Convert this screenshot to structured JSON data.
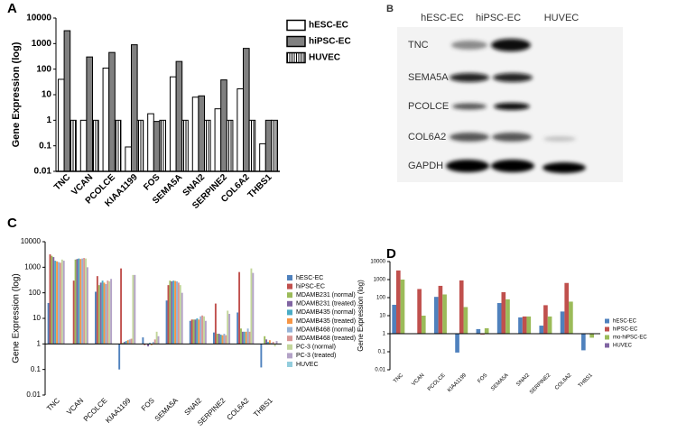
{
  "chart_data": [
    {
      "type": "bar",
      "panel_label": "A",
      "ylabel": "Gene Expression (log)",
      "log_scale": true,
      "legend": "right",
      "categories": [
        "TNC",
        "VCAN",
        "PCOLCE",
        "KIAA1199",
        "FOS",
        "SEMA5A",
        "SNAI2",
        "SERPINE2",
        "COL6A2",
        "THBS1"
      ],
      "ylim": [
        0.01,
        10000
      ],
      "yticks": [
        0.01,
        0.1,
        1,
        10,
        100,
        1000,
        10000
      ],
      "series": [
        {
          "name": "hESC-EC",
          "color": "#ffffff",
          "values": [
            40,
            1,
            110,
            0.09,
            1.8,
            50,
            8,
            2.8,
            17,
            0.12
          ]
        },
        {
          "name": "hiPSC-EC",
          "color": "#808080",
          "values": [
            3200,
            300,
            450,
            900,
            0.9,
            200,
            9,
            38,
            650,
            1
          ]
        },
        {
          "name": "HUVEC",
          "color": "#ffffff",
          "hatch": "vertical",
          "values": [
            1,
            1,
            1,
            1,
            1,
            1,
            1,
            1,
            1,
            1
          ]
        }
      ]
    },
    {
      "type": "bar",
      "panel_label": "C",
      "ylabel": "Gene Expression (log)",
      "log_scale": true,
      "legend": "right",
      "bar_base": 1,
      "categories": [
        "TNC",
        "VCAN",
        "PCOLCE",
        "KIAA1199",
        "FOS",
        "SEMA5A",
        "SNAI2",
        "SERPINE2",
        "COL6A2",
        "THBS1"
      ],
      "ylim": [
        0.01,
        10000
      ],
      "yticks": [
        0.01,
        0.1,
        1,
        10,
        100,
        1000,
        10000
      ],
      "series": [
        {
          "name": "hESC-EC",
          "color": "#4f81bd",
          "values": [
            40,
            1,
            110,
            0.1,
            1.8,
            50,
            8,
            2.8,
            17,
            0.12
          ]
        },
        {
          "name": "hiPSC-EC",
          "color": "#c0504d",
          "values": [
            3200,
            300,
            450,
            900,
            0.9,
            200,
            9,
            38,
            650,
            1
          ]
        },
        {
          "name": "MDAMB231 (normal)",
          "color": "#9bbb59",
          "values": [
            2800,
            2000,
            200,
            1.1,
            1,
            300,
            9,
            2.5,
            4,
            2
          ]
        },
        {
          "name": "MDAMB231 (treated)",
          "color": "#8064a2",
          "values": [
            2500,
            2100,
            250,
            1.2,
            0.8,
            280,
            9,
            2.5,
            3,
            1.5
          ]
        },
        {
          "name": "MDAMB435 (normal)",
          "color": "#4bacc6",
          "values": [
            1800,
            2200,
            300,
            1.3,
            1.1,
            300,
            10,
            2.3,
            3,
            1.2
          ]
        },
        {
          "name": "MDAMB435 (treated)",
          "color": "#f79646",
          "values": [
            1700,
            2100,
            250,
            1.4,
            0.9,
            290,
            9,
            2.2,
            3,
            1.4
          ]
        },
        {
          "name": "MDAMB468 (normal)",
          "color": "#95b3d7",
          "values": [
            1600,
            2200,
            220,
            1.5,
            1.2,
            280,
            12,
            2.5,
            4,
            1.1
          ]
        },
        {
          "name": "MDAMB468 (treated)",
          "color": "#d99694",
          "values": [
            1500,
            2300,
            300,
            1.6,
            1.5,
            250,
            13,
            2.2,
            3,
            1.2
          ]
        },
        {
          "name": "PC-3 (normal)",
          "color": "#c3d69b",
          "values": [
            2000,
            2200,
            280,
            500,
            3,
            200,
            12,
            20,
            900,
            0.8
          ]
        },
        {
          "name": "PC-3 (treated)",
          "color": "#b3a2c7",
          "values": [
            1800,
            1000,
            350,
            500,
            2,
            100,
            8,
            15,
            600,
            1.3
          ]
        },
        {
          "name": "HUVEC",
          "color": "#93cddd",
          "values": [
            1,
            1,
            1,
            1,
            1,
            1,
            1,
            1,
            1,
            1
          ]
        }
      ]
    },
    {
      "type": "bar",
      "panel_label": "D",
      "ylabel": "Gene Expression (log)",
      "log_scale": true,
      "legend": "right",
      "bar_base": 1,
      "categories": [
        "TNC",
        "VCAN",
        "PCOLCE",
        "KIAA1199",
        "FOS",
        "SEMA5A",
        "SNAI2",
        "SERPINE2",
        "COL6A2",
        "THBS1"
      ],
      "ylim": [
        0.01,
        10000
      ],
      "yticks": [
        0.01,
        0.1,
        1,
        10,
        100,
        1000,
        10000
      ],
      "series": [
        {
          "name": "hESC-EC",
          "color": "#4f81bd",
          "values": [
            40,
            1,
            110,
            0.09,
            1.8,
            50,
            8,
            2.8,
            17,
            0.12
          ]
        },
        {
          "name": "hiPSC-EC",
          "color": "#c0504d",
          "values": [
            3200,
            300,
            450,
            900,
            0.9,
            200,
            9,
            38,
            650,
            1
          ]
        },
        {
          "name": "mo-hiPSC-EC",
          "color": "#9bbb59",
          "values": [
            1000,
            10,
            150,
            30,
            2,
            80,
            9,
            9,
            60,
            0.6
          ]
        },
        {
          "name": "HUVEC",
          "color": "#8064a2",
          "values": [
            1,
            1,
            1,
            1,
            1,
            1,
            1,
            1,
            1,
            1
          ]
        }
      ]
    }
  ],
  "blot": {
    "panel_label": "B",
    "columns": [
      "hESC-EC",
      "hiPSC-EC",
      "HUVEC"
    ],
    "rows": [
      "TNC",
      "SEMA5A",
      "PCOLCE",
      "COL6A2",
      "GAPDH"
    ]
  }
}
